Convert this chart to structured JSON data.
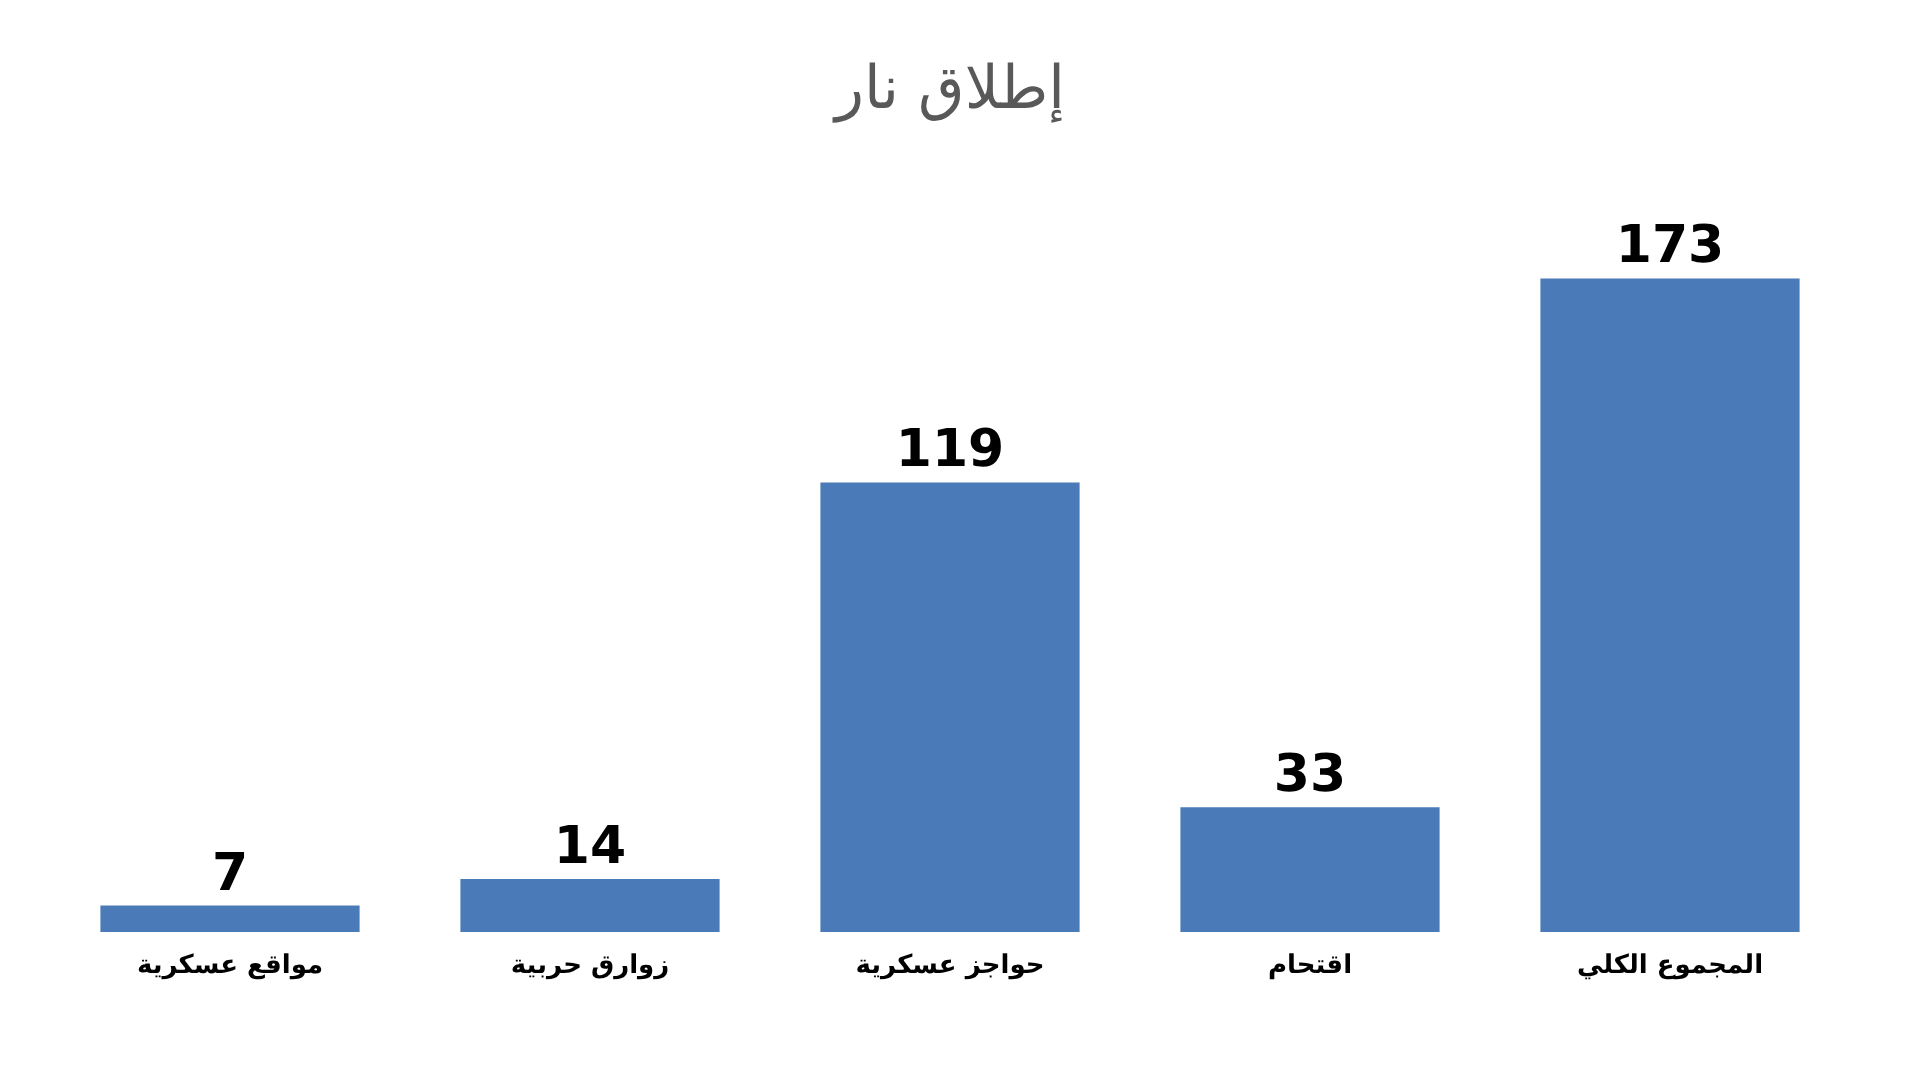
{
  "chart_data": {
    "type": "bar",
    "title": "إطلاق نار",
    "categories": [
      "مواقع عسكرية",
      "زوارق حربية",
      "حواجز عسكرية",
      "اقتحام",
      "المجموع الكلي"
    ],
    "values": [
      7,
      14,
      119,
      33,
      173
    ],
    "color": "#4a7ab8",
    "data_labels": true
  }
}
